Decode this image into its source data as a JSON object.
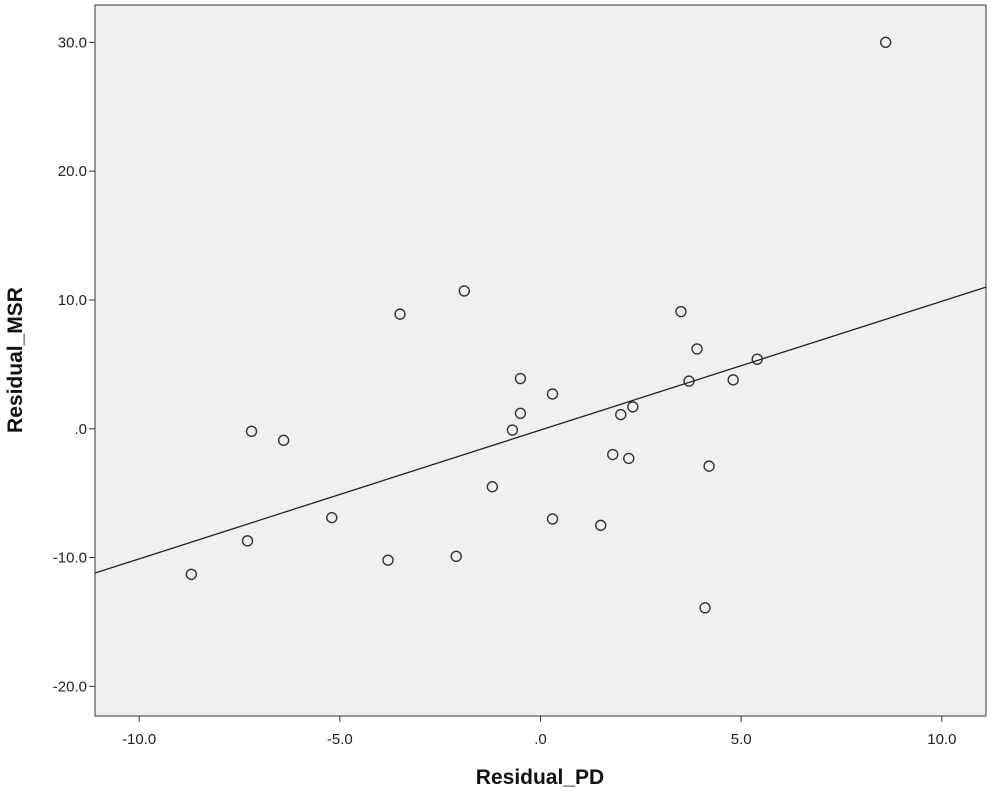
{
  "chart_data": {
    "type": "scatter",
    "title": "",
    "xlabel": "Residual_PD",
    "ylabel": "Residual_MSR",
    "xlim": [
      -11.1,
      11.1
    ],
    "ylim": [
      -22.3,
      32.9
    ],
    "xticks": [
      -10.0,
      -5.0,
      0.0,
      5.0,
      10.0
    ],
    "xtick_labels": [
      "-10.0",
      "-5.0",
      ".0",
      "5.0",
      "10.0"
    ],
    "yticks": [
      -20.0,
      -10.0,
      0.0,
      10.0,
      20.0,
      30.0
    ],
    "ytick_labels": [
      "-20.0",
      "-10.0",
      ".0",
      "10.0",
      "20.0",
      "30.0"
    ],
    "grid": false,
    "legend": "none",
    "plot_background": "#f0f0f0",
    "marker_style": "open-circle",
    "marker_color": "#333333",
    "points": [
      {
        "x": 8.6,
        "y": 30.0
      },
      {
        "x": -1.9,
        "y": 10.7
      },
      {
        "x": -3.5,
        "y": 8.9
      },
      {
        "x": 3.5,
        "y": 9.1
      },
      {
        "x": 3.9,
        "y": 6.2
      },
      {
        "x": 5.4,
        "y": 5.4
      },
      {
        "x": -0.5,
        "y": 3.9
      },
      {
        "x": 3.7,
        "y": 3.7
      },
      {
        "x": 4.8,
        "y": 3.8
      },
      {
        "x": 0.3,
        "y": 2.7
      },
      {
        "x": 2.3,
        "y": 1.7
      },
      {
        "x": 2.0,
        "y": 1.1
      },
      {
        "x": -0.5,
        "y": 1.2
      },
      {
        "x": -0.7,
        "y": -0.1
      },
      {
        "x": -7.2,
        "y": -0.2
      },
      {
        "x": -6.4,
        "y": -0.9
      },
      {
        "x": 1.8,
        "y": -2.0
      },
      {
        "x": 2.2,
        "y": -2.3
      },
      {
        "x": 4.2,
        "y": -2.9
      },
      {
        "x": -1.2,
        "y": -4.5
      },
      {
        "x": -5.2,
        "y": -6.9
      },
      {
        "x": 0.3,
        "y": -7.0
      },
      {
        "x": 1.5,
        "y": -7.5
      },
      {
        "x": -7.3,
        "y": -8.7
      },
      {
        "x": -2.1,
        "y": -9.9
      },
      {
        "x": -3.8,
        "y": -10.2
      },
      {
        "x": -8.7,
        "y": -11.3
      },
      {
        "x": 4.1,
        "y": -13.9
      }
    ],
    "fit_line": {
      "x": [
        -11.1,
        11.1
      ],
      "y": [
        -11.2,
        11.0
      ]
    }
  }
}
